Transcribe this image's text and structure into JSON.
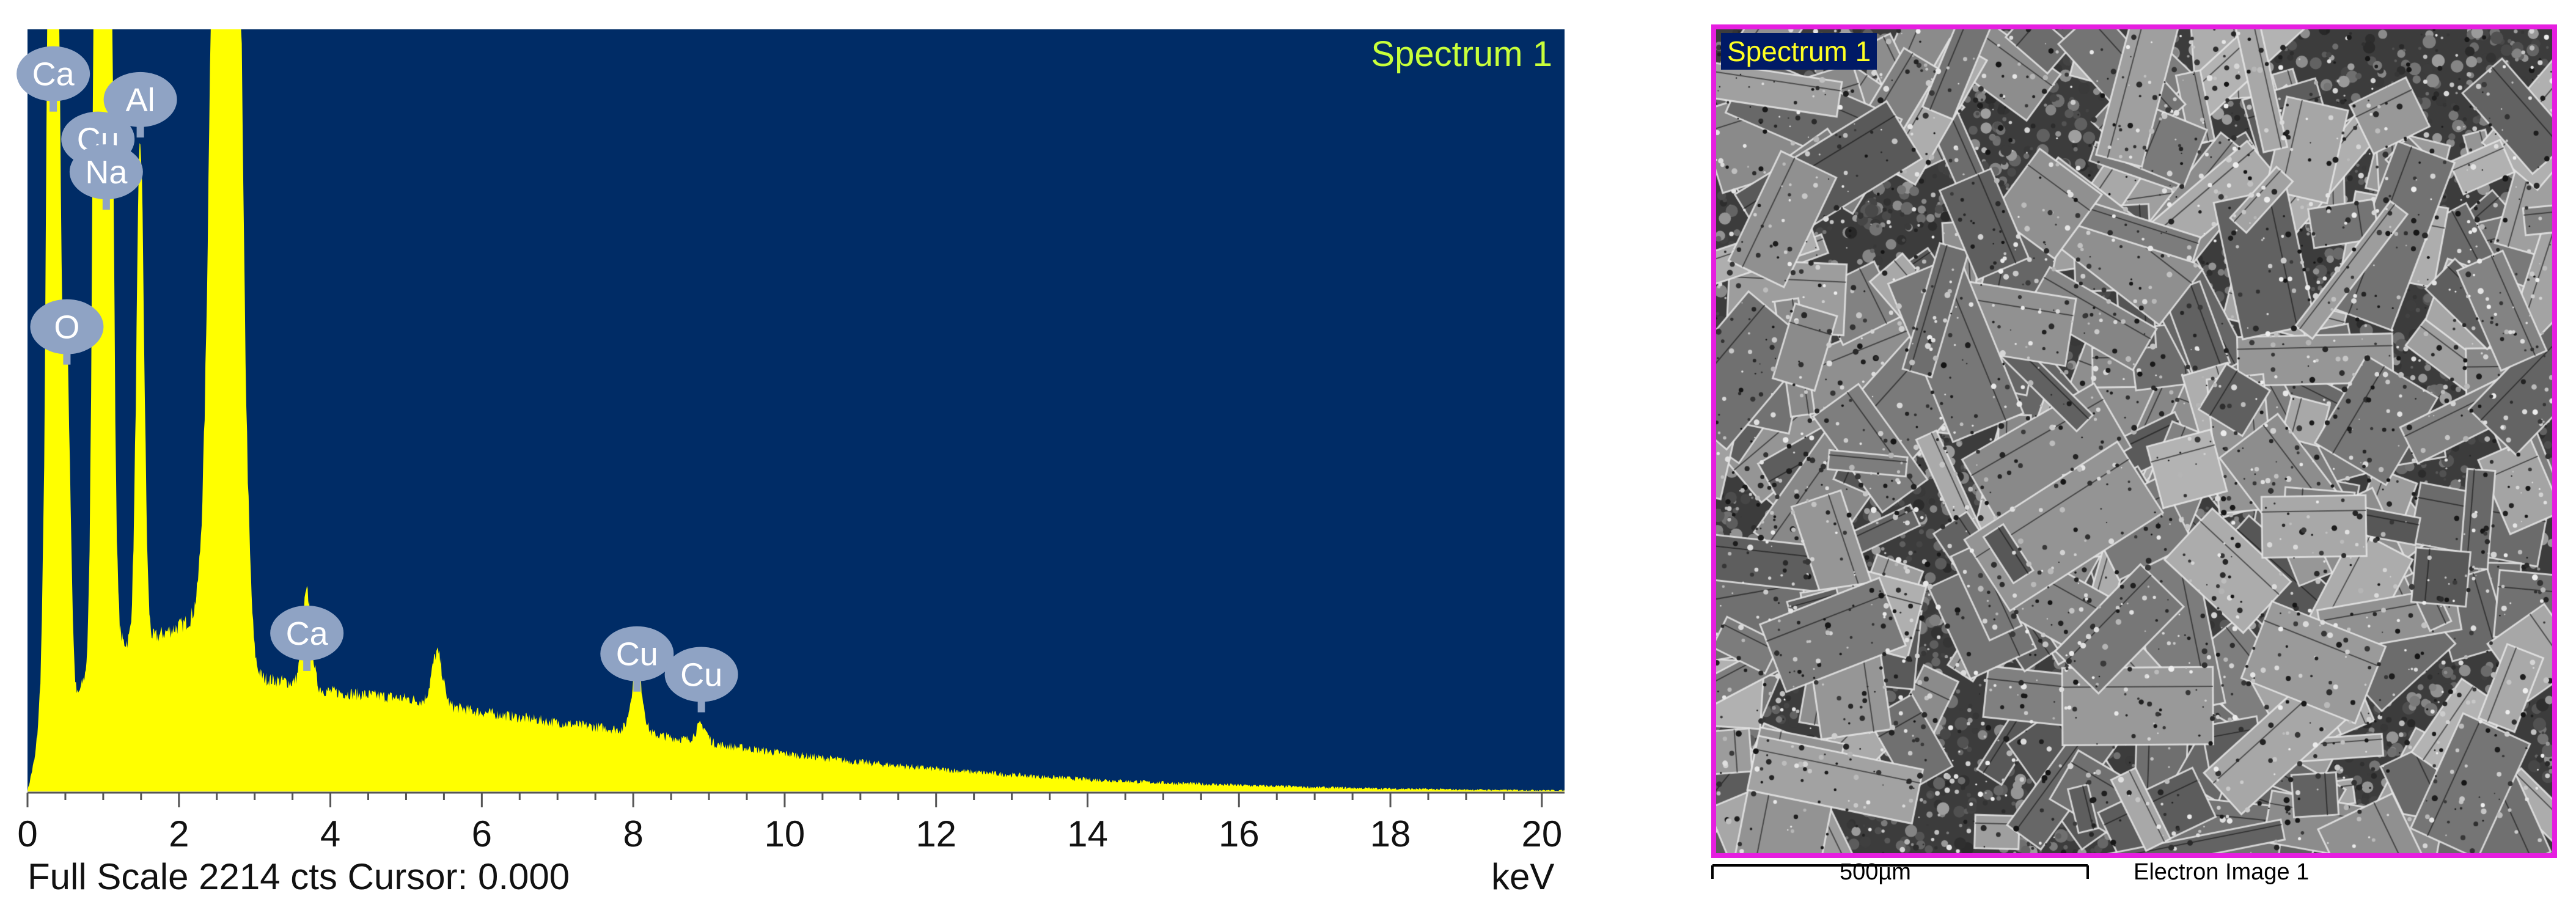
{
  "chart_data": {
    "type": "area",
    "title": "Spectrum 1",
    "xlabel": "keV",
    "xlim": [
      0,
      20.3
    ],
    "x_ticks": [
      "0",
      "2",
      "4",
      "6",
      "8",
      "10",
      "12",
      "14",
      "16",
      "18",
      "20"
    ],
    "full_scale_counts": 2214,
    "footer_text": "Full Scale 2214 cts Cursor: 0.000",
    "background_color": "#002c66",
    "fill_color": "#ffff00",
    "background_level": [
      [
        0.0,
        0
      ],
      [
        0.1,
        100
      ],
      [
        0.2,
        300
      ],
      [
        0.55,
        150
      ],
      [
        0.7,
        300
      ],
      [
        0.9,
        400
      ],
      [
        1.2,
        430
      ],
      [
        1.6,
        440
      ],
      [
        2.0,
        480
      ],
      [
        2.4,
        520
      ],
      [
        2.75,
        590
      ],
      [
        3.0,
        330
      ],
      [
        3.4,
        320
      ],
      [
        4.0,
        290
      ],
      [
        5.0,
        270
      ],
      [
        6.0,
        230
      ],
      [
        7.0,
        200
      ],
      [
        8.0,
        175
      ],
      [
        9.0,
        140
      ],
      [
        10.0,
        110
      ],
      [
        11.0,
        85
      ],
      [
        12.0,
        65
      ],
      [
        13.0,
        48
      ],
      [
        14.0,
        35
      ],
      [
        15.0,
        25
      ],
      [
        16.0,
        18
      ],
      [
        17.0,
        12
      ],
      [
        18.0,
        8
      ],
      [
        19.0,
        5
      ],
      [
        20.3,
        3
      ]
    ],
    "peaks": [
      {
        "element": "Ca",
        "kev": 0.34,
        "counts": 5000,
        "width_kev": 0.06
      },
      {
        "element": "O",
        "kev": 0.52,
        "counts": 1100,
        "width_kev": 0.05
      },
      {
        "element": "Cu",
        "kev": 0.93,
        "counts": 4000,
        "width_kev": 0.05
      },
      {
        "element": "Na",
        "kev": 1.04,
        "counts": 5000,
        "width_kev": 0.06
      },
      {
        "element": "Al",
        "kev": 1.49,
        "counts": 1450,
        "width_kev": 0.05
      },
      {
        "element": "",
        "kev": 2.62,
        "counts": 6000,
        "width_kev": 0.13
      },
      {
        "element": "Ca",
        "kev": 3.69,
        "counts": 270,
        "width_kev": 0.06
      },
      {
        "element": "",
        "kev": 5.41,
        "counts": 150,
        "width_kev": 0.07
      },
      {
        "element": "Cu",
        "kev": 8.05,
        "counts": 190,
        "width_kev": 0.07
      },
      {
        "element": "Cu",
        "kev": 8.9,
        "counts": 50,
        "width_kev": 0.07
      }
    ],
    "peak_labels": [
      {
        "text": "Ca",
        "kev": 0.34,
        "counts": 2085
      },
      {
        "text": "Al",
        "kev": 1.49,
        "counts": 2010
      },
      {
        "text": "Cu",
        "kev": 0.93,
        "counts": 1895
      },
      {
        "text": "Na",
        "kev": 1.04,
        "counts": 1800
      },
      {
        "text": "O",
        "kev": 0.52,
        "counts": 1350
      },
      {
        "text": "Ca",
        "kev": 3.69,
        "counts": 460
      },
      {
        "text": "Cu",
        "kev": 8.05,
        "counts": 400
      },
      {
        "text": "Cu",
        "kev": 8.9,
        "counts": 340
      }
    ],
    "label_bubble_color": "#8fa3c4"
  },
  "image_panel": {
    "tag": "Spectrum 1",
    "scale_bar_label": "500µm",
    "caption": "Electron Image 1",
    "frame_color": "#e61ee0"
  }
}
